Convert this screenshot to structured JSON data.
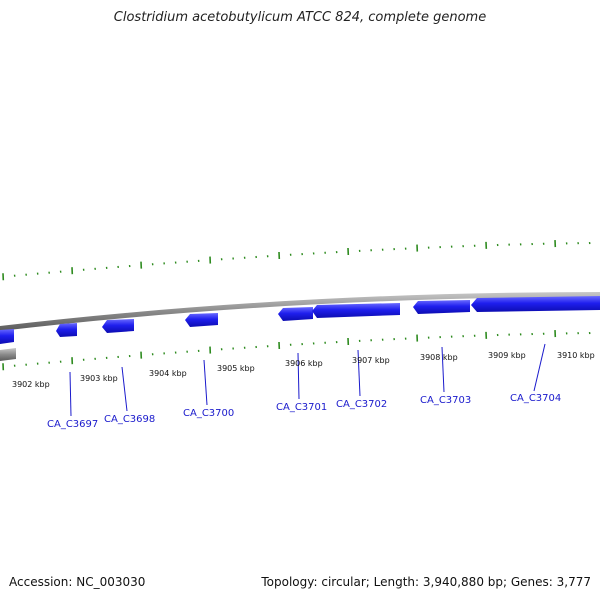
{
  "header": {
    "title": "Clostridium acetobutylicum ATCC 824, complete genome"
  },
  "footer": {
    "accession": "Accession: NC_003030",
    "summary": "Topology: circular; Length: 3,940,880 bp; Genes: 3,777"
  },
  "colors": {
    "gene": "#1f1fee",
    "tick": "#2e8b1f",
    "backbone": "#8a8a8a",
    "label": "#1a1acc"
  },
  "kbp_labels": [
    "3902 kbp",
    "3903 kbp",
    "3904 kbp",
    "3905 kbp",
    "3906 kbp",
    "3907 kbp",
    "3908 kbp",
    "3909 kbp",
    "3910 kbp"
  ],
  "genes": [
    "CA_C3697",
    "CA_C3698",
    "CA_C3700",
    "CA_C3701",
    "CA_C3702",
    "CA_C3703",
    "CA_C3704"
  ]
}
